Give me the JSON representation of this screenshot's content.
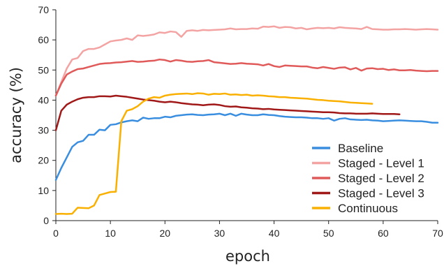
{
  "chart_data": {
    "type": "line",
    "title": "",
    "xlabel": "epoch",
    "ylabel": "accuracy (%)",
    "xlim": [
      0,
      70
    ],
    "ylim": [
      0,
      70
    ],
    "xticks": [
      "0",
      "10",
      "20",
      "30",
      "40",
      "50",
      "60",
      "70"
    ],
    "yticks": [
      "0",
      "10",
      "20",
      "30",
      "40",
      "50",
      "60",
      "70"
    ],
    "grid": false,
    "legend_position": "bottom-right",
    "series": [
      {
        "name": "Baseline",
        "color": "#3a8ee0",
        "x": [
          0,
          1,
          2,
          3,
          4,
          5,
          6,
          7,
          8,
          9,
          10,
          11,
          12,
          13,
          14,
          15,
          16,
          17,
          18,
          19,
          20,
          21,
          22,
          23,
          24,
          25,
          26,
          27,
          28,
          29,
          30,
          31,
          32,
          33,
          34,
          35,
          36,
          37,
          38,
          39,
          40,
          41,
          42,
          43,
          44,
          45,
          46,
          47,
          48,
          49,
          50,
          51,
          52,
          53,
          54,
          55,
          56,
          57,
          58,
          59,
          60,
          61,
          62,
          63,
          64,
          65,
          66,
          67,
          68,
          69,
          70
        ],
        "y": [
          13.5,
          17.5,
          21,
          24.5,
          26,
          26.5,
          28.5,
          28.5,
          30.2,
          30,
          31.8,
          32,
          32.6,
          33,
          33.3,
          33,
          34.2,
          33.8,
          34,
          34,
          34.5,
          34.3,
          34.8,
          35,
          35.2,
          35.3,
          35.1,
          35,
          35.2,
          35.3,
          35.5,
          35,
          35.5,
          34.8,
          35.5,
          35.2,
          35,
          35,
          35.3,
          35.1,
          35,
          34.7,
          34.5,
          34.4,
          34.3,
          34.3,
          34.2,
          34,
          34,
          33.8,
          34,
          33.2,
          33.8,
          34,
          33.6,
          33.5,
          33.4,
          33.5,
          33.3,
          33.2,
          33,
          33.1,
          33.2,
          33.3,
          33.2,
          33.1,
          33,
          33,
          32.8,
          32.5,
          32.5
        ]
      },
      {
        "name": "Staged - Level 1",
        "color": "#f4a3a3",
        "x": [
          0,
          1,
          2,
          3,
          4,
          5,
          6,
          7,
          8,
          9,
          10,
          11,
          12,
          13,
          14,
          15,
          16,
          17,
          18,
          19,
          20,
          21,
          22,
          23,
          24,
          25,
          26,
          27,
          28,
          29,
          30,
          31,
          32,
          33,
          34,
          35,
          36,
          37,
          38,
          39,
          40,
          41,
          42,
          43,
          44,
          45,
          46,
          47,
          48,
          49,
          50,
          51,
          52,
          53,
          54,
          55,
          56,
          57,
          58,
          59,
          60,
          61,
          62,
          63,
          64,
          65,
          66,
          67,
          68,
          69,
          70
        ],
        "y": [
          41.5,
          46,
          50.5,
          53.5,
          54,
          56.3,
          57,
          57,
          57.5,
          58.5,
          59.5,
          59.8,
          60,
          60.5,
          60,
          61.5,
          61.3,
          61.5,
          61.8,
          62.5,
          62.3,
          62.8,
          62.6,
          61,
          63,
          63.2,
          63,
          63.3,
          63.2,
          63.3,
          63.4,
          63.5,
          63.8,
          63.5,
          63.6,
          63.6,
          63.8,
          63.7,
          64.4,
          64.3,
          64.5,
          64,
          64.3,
          64.2,
          63.8,
          64,
          63.5,
          63.8,
          64,
          63.9,
          64,
          63.8,
          64.2,
          64,
          63.9,
          63.8,
          63.6,
          64.3,
          63.6,
          63.5,
          63.4,
          63.4,
          63.5,
          63.5,
          63.6,
          63.5,
          63.4,
          63.5,
          63.6,
          63.5,
          63.4
        ]
      },
      {
        "name": "Staged - Level 2",
        "color": "#e05a5a",
        "x": [
          0,
          1,
          2,
          3,
          4,
          5,
          6,
          7,
          8,
          9,
          10,
          11,
          12,
          13,
          14,
          15,
          16,
          17,
          18,
          19,
          20,
          21,
          22,
          23,
          24,
          25,
          26,
          27,
          28,
          29,
          30,
          31,
          32,
          33,
          34,
          35,
          36,
          37,
          38,
          39,
          40,
          41,
          42,
          43,
          44,
          45,
          46,
          47,
          48,
          49,
          50,
          51,
          52,
          53,
          54,
          55,
          56,
          57,
          58,
          59,
          60,
          61,
          62,
          63,
          64,
          65,
          66,
          67,
          68,
          69,
          70
        ],
        "y": [
          41.5,
          45.5,
          48.5,
          49.5,
          50.3,
          50.5,
          51,
          51.5,
          52,
          52.2,
          52.3,
          52.5,
          52.6,
          52.8,
          53,
          52.7,
          52.8,
          53,
          53.1,
          53.5,
          53.3,
          52.8,
          53.3,
          53.1,
          52.8,
          52.7,
          52.9,
          53,
          53.3,
          52.6,
          52.4,
          52.2,
          52,
          52.1,
          52.3,
          52.1,
          52,
          51.9,
          51.5,
          52,
          51.3,
          51,
          51.5,
          51.4,
          51.3,
          51.2,
          51.2,
          50.8,
          50.6,
          51,
          50.7,
          50.4,
          50.8,
          50.9,
          50.2,
          50.7,
          49.8,
          50.5,
          50.6,
          50.3,
          50.4,
          50,
          50.2,
          49.9,
          49.9,
          50,
          49.8,
          49.7,
          49.6,
          49.7,
          49.7
        ]
      },
      {
        "name": "Staged - Level 3",
        "color": "#a01818",
        "x": [
          0,
          1,
          2,
          3,
          4,
          5,
          6,
          7,
          8,
          9,
          10,
          11,
          12,
          13,
          14,
          15,
          16,
          17,
          18,
          19,
          20,
          21,
          22,
          23,
          24,
          25,
          26,
          27,
          28,
          29,
          30,
          31,
          32,
          33,
          34,
          35,
          36,
          37,
          38,
          39,
          40,
          41,
          42,
          43,
          44,
          45,
          46,
          47,
          48,
          49,
          50,
          51,
          52,
          53,
          54,
          55,
          56,
          57,
          58,
          59,
          60,
          61,
          62,
          63
        ],
        "y": [
          30,
          36.5,
          38.5,
          39.5,
          40.3,
          40.8,
          41,
          41,
          41.3,
          41.3,
          41.2,
          41.5,
          41.3,
          41.1,
          40.8,
          40.5,
          40.2,
          40,
          39.8,
          39.5,
          39.3,
          39.5,
          39.3,
          39,
          38.8,
          38.6,
          38.5,
          38.3,
          38.5,
          38.6,
          38.4,
          38,
          37.8,
          37.9,
          37.6,
          37.5,
          37.3,
          37.2,
          37,
          37.1,
          36.9,
          36.8,
          36.7,
          36.6,
          36.5,
          36.4,
          36.3,
          36.2,
          36.1,
          36,
          36,
          35.9,
          35.7,
          35.6,
          35.6,
          35.5,
          35.5,
          35.5,
          35.6,
          35.5,
          35.4,
          35.4,
          35.4,
          35.3
        ]
      },
      {
        "name": "Continuous",
        "color": "#f9b000",
        "x": [
          0,
          1,
          2,
          3,
          4,
          5,
          6,
          7,
          8,
          9,
          10,
          11,
          12,
          13,
          14,
          15,
          16,
          17,
          18,
          19,
          20,
          21,
          22,
          23,
          24,
          25,
          26,
          27,
          28,
          29,
          30,
          31,
          32,
          33,
          34,
          35,
          36,
          37,
          38,
          39,
          40,
          41,
          42,
          43,
          44,
          45,
          46,
          47,
          48,
          49,
          50,
          51,
          52,
          53,
          54,
          55,
          56,
          57,
          58
        ],
        "y": [
          2.2,
          2.3,
          2.2,
          2.3,
          4.3,
          4.2,
          4.1,
          5,
          8.5,
          9,
          9.5,
          9.6,
          33,
          36.5,
          37,
          38,
          39.5,
          40.5,
          41,
          40.8,
          41.5,
          41.8,
          42,
          42.1,
          42.2,
          42,
          42.3,
          42.2,
          41.8,
          42.1,
          42,
          42.2,
          41.8,
          41.9,
          41.7,
          41.8,
          41.5,
          41.6,
          41.5,
          41.3,
          41.2,
          41,
          41,
          40.8,
          40.7,
          40.6,
          40.5,
          40.3,
          40.1,
          40,
          39.8,
          39.7,
          39.6,
          39.4,
          39.2,
          39.1,
          39,
          38.9,
          38.8
        ]
      }
    ]
  }
}
